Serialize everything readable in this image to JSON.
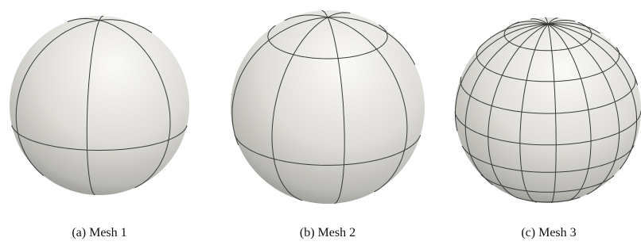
{
  "figures": [
    {
      "caption": "(a) Mesh 1"
    },
    {
      "caption": "(b) Mesh 2"
    },
    {
      "caption": "(c) Mesh 3"
    }
  ]
}
